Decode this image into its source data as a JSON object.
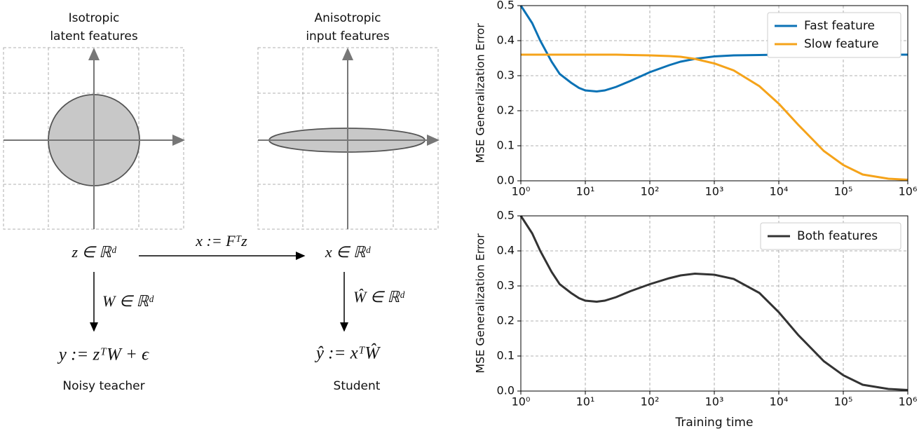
{
  "diagram": {
    "latent": {
      "title_lines": [
        "Isotropic",
        "latent features"
      ],
      "variable": "z ∈ ℝᵈ",
      "weight": "W ∈ ℝᵈ",
      "output": "y := zᵀW + ϵ",
      "caption": "Noisy teacher"
    },
    "input": {
      "title_lines": [
        "Anisotropic",
        "input features"
      ],
      "variable": "x ∈ ℝᵈ",
      "weight": "Ŵ ∈ ℝᵈ",
      "output": "ŷ := xᵀŴ",
      "caption": "Student"
    },
    "map": "x := Fᵀz"
  },
  "chart_data": [
    {
      "type": "line",
      "ylabel": "MSE Generalization Error",
      "log_x": true,
      "grid": true,
      "legend": "upper right",
      "x": [
        1,
        1.5,
        2,
        3,
        4,
        6,
        8,
        10,
        15,
        20,
        30,
        50,
        100,
        200,
        300,
        500,
        1000,
        2000,
        5000,
        10000,
        20000,
        50000,
        100000,
        200000,
        500000,
        1000000
      ],
      "series": [
        {
          "name": "Fast feature",
          "color": "#0b72b5",
          "values": [
            0.5,
            0.45,
            0.4,
            0.34,
            0.305,
            0.28,
            0.265,
            0.258,
            0.255,
            0.258,
            0.268,
            0.285,
            0.31,
            0.33,
            0.34,
            0.348,
            0.355,
            0.358,
            0.359,
            0.36,
            0.36,
            0.36,
            0.36,
            0.36,
            0.36,
            0.36
          ]
        },
        {
          "name": "Slow feature",
          "color": "#f5a31a",
          "values": [
            0.36,
            0.36,
            0.36,
            0.36,
            0.36,
            0.36,
            0.36,
            0.36,
            0.36,
            0.36,
            0.36,
            0.359,
            0.358,
            0.356,
            0.354,
            0.348,
            0.335,
            0.315,
            0.27,
            0.22,
            0.16,
            0.085,
            0.045,
            0.018,
            0.006,
            0.003
          ]
        }
      ],
      "xlim": [
        1,
        1000000
      ],
      "xticks": [
        {
          "value": 1,
          "label": "10⁰"
        },
        {
          "value": 10,
          "label": "10¹"
        },
        {
          "value": 100,
          "label": "10²"
        },
        {
          "value": 1000,
          "label": "10³"
        },
        {
          "value": 10000,
          "label": "10⁴"
        },
        {
          "value": 100000,
          "label": "10⁵"
        },
        {
          "value": 1000000,
          "label": "10⁶"
        }
      ],
      "ylim": [
        0,
        0.5
      ],
      "yticks": [
        {
          "value": 0,
          "label": "0.0"
        },
        0.1,
        0.2,
        0.3,
        0.4,
        0.5
      ]
    },
    {
      "type": "line",
      "ylabel": "MSE Generalization Error",
      "xlabel": "Training time",
      "log_x": true,
      "grid": true,
      "legend": "upper right",
      "x": [
        1,
        1.5,
        2,
        3,
        4,
        6,
        8,
        10,
        15,
        20,
        30,
        50,
        100,
        200,
        300,
        500,
        1000,
        2000,
        5000,
        10000,
        20000,
        50000,
        100000,
        200000,
        500000,
        1000000
      ],
      "series": [
        {
          "name": "Both features",
          "color": "#333333",
          "values": [
            0.5,
            0.45,
            0.4,
            0.34,
            0.305,
            0.28,
            0.265,
            0.258,
            0.255,
            0.258,
            0.268,
            0.285,
            0.305,
            0.322,
            0.33,
            0.335,
            0.332,
            0.32,
            0.28,
            0.225,
            0.16,
            0.085,
            0.045,
            0.018,
            0.006,
            0.003
          ]
        }
      ],
      "xlim": [
        1,
        1000000
      ],
      "xticks": [
        {
          "value": 1,
          "label": "10⁰"
        },
        {
          "value": 10,
          "label": "10¹"
        },
        {
          "value": 100,
          "label": "10²"
        },
        {
          "value": 1000,
          "label": "10³"
        },
        {
          "value": 10000,
          "label": "10⁴"
        },
        {
          "value": 100000,
          "label": "10⁵"
        },
        {
          "value": 1000000,
          "label": "10⁶"
        }
      ],
      "ylim": [
        0,
        0.5
      ],
      "yticks": [
        {
          "value": 0,
          "label": "0.0"
        },
        0.1,
        0.2,
        0.3,
        0.4,
        0.5
      ]
    }
  ]
}
